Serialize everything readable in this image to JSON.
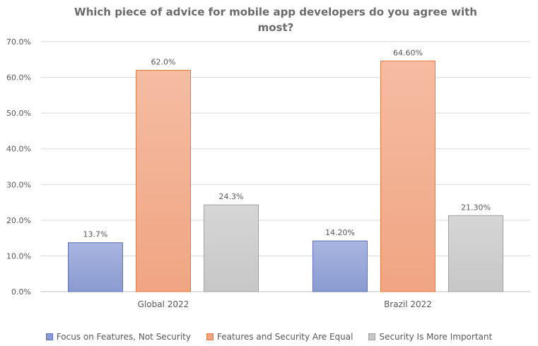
{
  "chart_data": {
    "type": "bar",
    "title": "Which piece of advice for mobile app developers do you agree with most?",
    "categories": [
      "Global 2022",
      "Brazil 2022"
    ],
    "series": [
      {
        "name": "Focus on Features, Not Security",
        "values": [
          13.7,
          14.2
        ],
        "labels": [
          "13.7%",
          "14.20%"
        ],
        "color": "#8a9bd0",
        "color_top": "#a9b4e0",
        "stroke": "#5a72b8"
      },
      {
        "name": "Features and Security Are Equal",
        "values": [
          62.0,
          64.6
        ],
        "labels": [
          "62.0%",
          "64.60%"
        ],
        "color": "#f0a583",
        "color_top": "#f5bca2",
        "stroke": "#e07a3f"
      },
      {
        "name": "Security Is More Important",
        "values": [
          24.3,
          21.3
        ],
        "labels": [
          "24.3%",
          "21.30%"
        ],
        "color": "#c7c7c7",
        "color_top": "#d6d6d6",
        "stroke": "#a0a0a0"
      }
    ],
    "ylim": [
      0,
      70
    ],
    "yticks": [
      "0.0%",
      "10.0%",
      "20.0%",
      "30.0%",
      "40.0%",
      "50.0%",
      "60.0%",
      "70.0%"
    ],
    "grid": true,
    "legend": "bottom"
  }
}
